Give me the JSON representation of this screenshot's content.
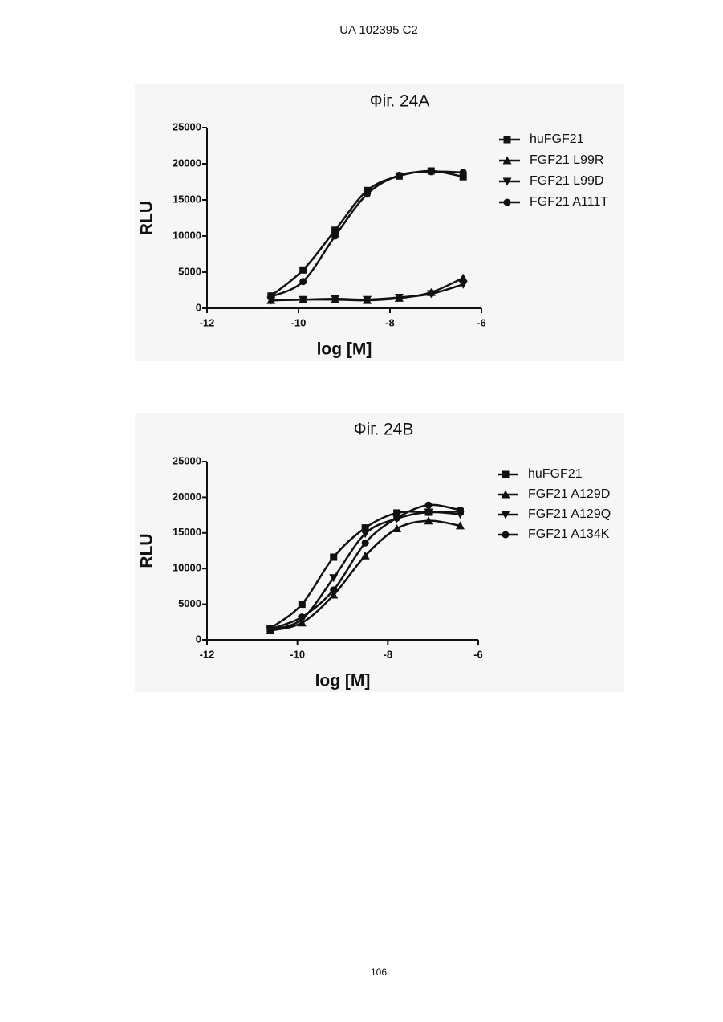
{
  "header": {
    "text": "UA   102395   C2"
  },
  "footer": {
    "page": "106"
  },
  "chart_data": [
    {
      "type": "scatter",
      "title": "Фіг. 24A",
      "x_label": "log [M]",
      "y_label": "RLU",
      "xlim": [
        -12,
        -6
      ],
      "xticks": [
        -12,
        -10,
        -8,
        -6
      ],
      "ylim": [
        0,
        25000
      ],
      "yticks": [
        0,
        5000,
        10000,
        15000,
        20000,
        25000
      ],
      "x": [
        -10.6,
        -9.9,
        -9.2,
        -8.5,
        -7.8,
        -7.1,
        -6.4
      ],
      "series": [
        {
          "name": "huFGF21",
          "color": "#111111",
          "marker": "square",
          "values": [
            1700,
            5300,
            10800,
            16300,
            18300,
            19000,
            18200
          ]
        },
        {
          "name": "FGF21 L99R",
          "color": "#111111",
          "marker": "triangle-up",
          "values": [
            1100,
            1200,
            1200,
            1100,
            1400,
            2200,
            4200
          ]
        },
        {
          "name": "FGF21 L99D",
          "color": "#111111",
          "marker": "triangle-down",
          "values": [
            1100,
            1200,
            1300,
            1200,
            1500,
            2000,
            3300
          ]
        },
        {
          "name": "FGF21 A111T",
          "color": "#111111",
          "marker": "circle",
          "values": [
            1600,
            3700,
            10000,
            15800,
            18400,
            18900,
            18800
          ]
        }
      ]
    },
    {
      "type": "scatter",
      "title": "Фіг. 24B",
      "x_label": "log [M]",
      "y_label": "RLU",
      "xlim": [
        -12,
        -6
      ],
      "xticks": [
        -12,
        -10,
        -8,
        -6
      ],
      "ylim": [
        0,
        25000
      ],
      "yticks": [
        0,
        5000,
        10000,
        15000,
        20000,
        25000
      ],
      "x": [
        -10.6,
        -9.9,
        -9.2,
        -8.5,
        -7.8,
        -7.1,
        -6.4
      ],
      "series": [
        {
          "name": "huFGF21",
          "color": "#111111",
          "marker": "square",
          "values": [
            1600,
            5000,
            11600,
            15700,
            17800,
            17900,
            18000
          ]
        },
        {
          "name": "FGF21 A129D",
          "color": "#111111",
          "marker": "triangle-up",
          "values": [
            1300,
            2400,
            6300,
            11800,
            15600,
            16700,
            16000
          ]
        },
        {
          "name": "FGF21 A129Q",
          "color": "#111111",
          "marker": "triangle-down",
          "values": [
            1400,
            2900,
            8700,
            14900,
            17000,
            17900,
            17600
          ]
        },
        {
          "name": "FGF21 A134K",
          "color": "#111111",
          "marker": "circle",
          "values": [
            1500,
            3200,
            7000,
            13600,
            17100,
            18900,
            18200
          ]
        }
      ]
    }
  ]
}
